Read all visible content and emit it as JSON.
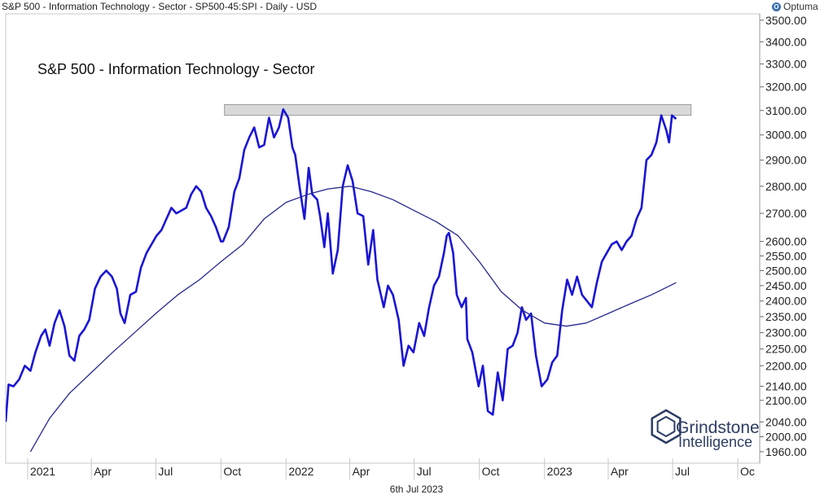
{
  "header": {
    "text": "S&P 500 - Information Technology - Sector - SP500-45:SPI - Daily - USD",
    "brand": "Optuma"
  },
  "footer": {
    "date": "6th Jul 2023"
  },
  "watermark": {
    "line1": "Grindstone",
    "line2": "Intelligence"
  },
  "colors": {
    "price": "#1a14d6",
    "ma": "#25288f",
    "band": "#d9d9d9",
    "grid": "#dfdfdf"
  },
  "chart_data": {
    "type": "line",
    "title": "S&P 500 - Information Technology - Sector",
    "y_scale": "log",
    "ylim": [
      1930,
      3530
    ],
    "xlim": [
      "2020-12-01",
      "2023-11-01"
    ],
    "y_ticks": [
      1960,
      2000,
      2040,
      2100,
      2140,
      2200,
      2250,
      2300,
      2350,
      2400,
      2450,
      2500,
      2550,
      2600,
      2700,
      2800,
      2900,
      3000,
      3100,
      3200,
      3300,
      3400,
      3500
    ],
    "y_tick_labels": [
      "1960.00",
      "2000.00",
      "2040.00",
      "2100.00",
      "2140.00",
      "2200.00",
      "2250.00",
      "2300.00",
      "2350.00",
      "2400.00",
      "2450.00",
      "2500.00",
      "2550.00",
      "2600.00",
      "2700.00",
      "2800.00",
      "2900.00",
      "3000.00",
      "3100.00",
      "3200.00",
      "3300.00",
      "3400.00",
      "3500.00"
    ],
    "x_ticks": [
      {
        "date": "2021-01-01",
        "label": "2021"
      },
      {
        "date": "2021-04-01",
        "label": "Apr"
      },
      {
        "date": "2021-07-01",
        "label": "Jul"
      },
      {
        "date": "2021-10-01",
        "label": "Oct"
      },
      {
        "date": "2022-01-01",
        "label": "2022"
      },
      {
        "date": "2022-04-01",
        "label": "Apr"
      },
      {
        "date": "2022-07-01",
        "label": "Jul"
      },
      {
        "date": "2022-10-01",
        "label": "Oct"
      },
      {
        "date": "2023-01-01",
        "label": "2023"
      },
      {
        "date": "2023-04-01",
        "label": "Apr"
      },
      {
        "date": "2023-07-01",
        "label": "Jul"
      },
      {
        "date": "2023-10-01",
        "label": "Oc"
      }
    ],
    "resistance_band": {
      "from": "2021-10-06",
      "to": "2023-07-27",
      "low": 3080,
      "high": 3125
    },
    "series": [
      {
        "role": "price",
        "points": [
          [
            "2020-12-01",
            2040
          ],
          [
            "2020-12-05",
            2145
          ],
          [
            "2020-12-12",
            2140
          ],
          [
            "2020-12-20",
            2160
          ],
          [
            "2020-12-28",
            2200
          ],
          [
            "2021-01-05",
            2185
          ],
          [
            "2021-01-12",
            2240
          ],
          [
            "2021-01-20",
            2290
          ],
          [
            "2021-01-26",
            2310
          ],
          [
            "2021-02-01",
            2260
          ],
          [
            "2021-02-08",
            2330
          ],
          [
            "2021-02-15",
            2370
          ],
          [
            "2021-02-22",
            2320
          ],
          [
            "2021-03-01",
            2230
          ],
          [
            "2021-03-08",
            2215
          ],
          [
            "2021-03-15",
            2290
          ],
          [
            "2021-03-22",
            2310
          ],
          [
            "2021-03-29",
            2340
          ],
          [
            "2021-04-06",
            2440
          ],
          [
            "2021-04-14",
            2480
          ],
          [
            "2021-04-22",
            2500
          ],
          [
            "2021-04-30",
            2480
          ],
          [
            "2021-05-07",
            2440
          ],
          [
            "2021-05-12",
            2360
          ],
          [
            "2021-05-18",
            2330
          ],
          [
            "2021-05-26",
            2420
          ],
          [
            "2021-06-03",
            2430
          ],
          [
            "2021-06-10",
            2510
          ],
          [
            "2021-06-18",
            2560
          ],
          [
            "2021-06-25",
            2590
          ],
          [
            "2021-07-02",
            2620
          ],
          [
            "2021-07-09",
            2640
          ],
          [
            "2021-07-16",
            2680
          ],
          [
            "2021-07-23",
            2720
          ],
          [
            "2021-07-30",
            2700
          ],
          [
            "2021-08-06",
            2710
          ],
          [
            "2021-08-13",
            2720
          ],
          [
            "2021-08-20",
            2770
          ],
          [
            "2021-08-27",
            2800
          ],
          [
            "2021-09-03",
            2780
          ],
          [
            "2021-09-10",
            2720
          ],
          [
            "2021-09-17",
            2690
          ],
          [
            "2021-09-24",
            2650
          ],
          [
            "2021-10-01",
            2600
          ],
          [
            "2021-10-04",
            2600
          ],
          [
            "2021-10-12",
            2650
          ],
          [
            "2021-10-20",
            2780
          ],
          [
            "2021-10-27",
            2830
          ],
          [
            "2021-11-03",
            2940
          ],
          [
            "2021-11-10",
            2990
          ],
          [
            "2021-11-17",
            3030
          ],
          [
            "2021-11-24",
            2950
          ],
          [
            "2021-12-01",
            2960
          ],
          [
            "2021-12-08",
            3070
          ],
          [
            "2021-12-15",
            2990
          ],
          [
            "2021-12-22",
            3030
          ],
          [
            "2021-12-28",
            3105
          ],
          [
            "2022-01-04",
            3070
          ],
          [
            "2022-01-10",
            2950
          ],
          [
            "2022-01-14",
            2920
          ],
          [
            "2022-01-20",
            2800
          ],
          [
            "2022-01-27",
            2680
          ],
          [
            "2022-02-02",
            2870
          ],
          [
            "2022-02-07",
            2770
          ],
          [
            "2022-02-14",
            2750
          ],
          [
            "2022-02-18",
            2690
          ],
          [
            "2022-02-24",
            2580
          ],
          [
            "2022-03-01",
            2700
          ],
          [
            "2022-03-08",
            2490
          ],
          [
            "2022-03-15",
            2570
          ],
          [
            "2022-03-22",
            2800
          ],
          [
            "2022-03-29",
            2880
          ],
          [
            "2022-04-05",
            2820
          ],
          [
            "2022-04-12",
            2700
          ],
          [
            "2022-04-20",
            2690
          ],
          [
            "2022-04-27",
            2520
          ],
          [
            "2022-05-04",
            2640
          ],
          [
            "2022-05-10",
            2470
          ],
          [
            "2022-05-19",
            2380
          ],
          [
            "2022-05-25",
            2450
          ],
          [
            "2022-06-01",
            2420
          ],
          [
            "2022-06-09",
            2340
          ],
          [
            "2022-06-16",
            2200
          ],
          [
            "2022-06-23",
            2260
          ],
          [
            "2022-06-30",
            2240
          ],
          [
            "2022-07-08",
            2330
          ],
          [
            "2022-07-15",
            2290
          ],
          [
            "2022-07-22",
            2380
          ],
          [
            "2022-07-29",
            2450
          ],
          [
            "2022-08-05",
            2480
          ],
          [
            "2022-08-12",
            2560
          ],
          [
            "2022-08-16",
            2620
          ],
          [
            "2022-08-19",
            2630
          ],
          [
            "2022-08-25",
            2560
          ],
          [
            "2022-08-30",
            2420
          ],
          [
            "2022-09-06",
            2380
          ],
          [
            "2022-09-12",
            2410
          ],
          [
            "2022-09-14",
            2280
          ],
          [
            "2022-09-21",
            2240
          ],
          [
            "2022-09-30",
            2140
          ],
          [
            "2022-10-06",
            2200
          ],
          [
            "2022-10-13",
            2070
          ],
          [
            "2022-10-20",
            2060
          ],
          [
            "2022-10-27",
            2180
          ],
          [
            "2022-11-03",
            2100
          ],
          [
            "2022-11-10",
            2250
          ],
          [
            "2022-11-17",
            2260
          ],
          [
            "2022-11-24",
            2300
          ],
          [
            "2022-11-30",
            2380
          ],
          [
            "2022-12-06",
            2340
          ],
          [
            "2022-12-13",
            2360
          ],
          [
            "2022-12-20",
            2230
          ],
          [
            "2022-12-28",
            2140
          ],
          [
            "2023-01-05",
            2160
          ],
          [
            "2023-01-12",
            2210
          ],
          [
            "2023-01-19",
            2230
          ],
          [
            "2023-01-26",
            2370
          ],
          [
            "2023-02-02",
            2470
          ],
          [
            "2023-02-09",
            2420
          ],
          [
            "2023-02-16",
            2480
          ],
          [
            "2023-02-23",
            2420
          ],
          [
            "2023-03-02",
            2400
          ],
          [
            "2023-03-09",
            2380
          ],
          [
            "2023-03-16",
            2460
          ],
          [
            "2023-03-23",
            2530
          ],
          [
            "2023-03-30",
            2560
          ],
          [
            "2023-04-06",
            2590
          ],
          [
            "2023-04-13",
            2600
          ],
          [
            "2023-04-20",
            2570
          ],
          [
            "2023-04-27",
            2600
          ],
          [
            "2023-05-04",
            2620
          ],
          [
            "2023-05-11",
            2680
          ],
          [
            "2023-05-18",
            2720
          ],
          [
            "2023-05-25",
            2900
          ],
          [
            "2023-06-01",
            2920
          ],
          [
            "2023-06-08",
            2970
          ],
          [
            "2023-06-15",
            3080
          ],
          [
            "2023-06-22",
            3020
          ],
          [
            "2023-06-26",
            2970
          ],
          [
            "2023-06-30",
            3080
          ],
          [
            "2023-07-06",
            3065
          ]
        ]
      },
      {
        "role": "moving_average",
        "points": [
          [
            "2021-01-05",
            1960
          ],
          [
            "2021-02-01",
            2050
          ],
          [
            "2021-03-01",
            2120
          ],
          [
            "2021-04-01",
            2180
          ],
          [
            "2021-05-01",
            2240
          ],
          [
            "2021-06-01",
            2300
          ],
          [
            "2021-07-01",
            2360
          ],
          [
            "2021-08-01",
            2420
          ],
          [
            "2021-09-01",
            2470
          ],
          [
            "2021-10-01",
            2530
          ],
          [
            "2021-11-01",
            2590
          ],
          [
            "2021-12-01",
            2680
          ],
          [
            "2022-01-01",
            2740
          ],
          [
            "2022-02-01",
            2770
          ],
          [
            "2022-03-01",
            2790
          ],
          [
            "2022-04-01",
            2800
          ],
          [
            "2022-05-01",
            2780
          ],
          [
            "2022-06-01",
            2750
          ],
          [
            "2022-07-01",
            2710
          ],
          [
            "2022-08-01",
            2670
          ],
          [
            "2022-09-01",
            2620
          ],
          [
            "2022-10-01",
            2530
          ],
          [
            "2022-11-01",
            2430
          ],
          [
            "2022-12-01",
            2370
          ],
          [
            "2023-01-01",
            2330
          ],
          [
            "2023-02-01",
            2320
          ],
          [
            "2023-03-01",
            2330
          ],
          [
            "2023-04-01",
            2360
          ],
          [
            "2023-05-01",
            2390
          ],
          [
            "2023-06-01",
            2420
          ],
          [
            "2023-07-06",
            2460
          ]
        ]
      }
    ]
  }
}
